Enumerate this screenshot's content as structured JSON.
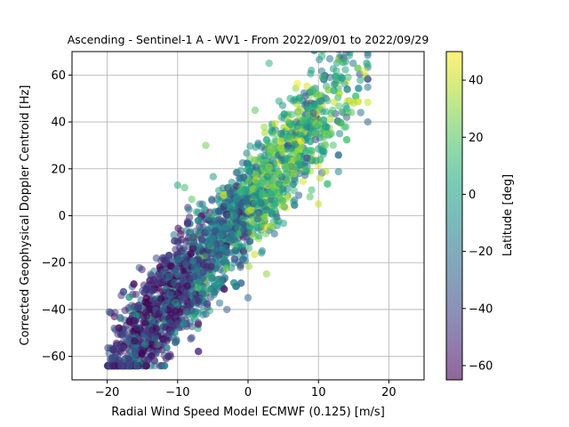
{
  "chart_data": {
    "type": "scatter",
    "title": "Ascending - Sentinel-1 A - WV1 - From 2022/09/01 to 2022/09/29",
    "xlabel": "Radial Wind Speed Model ECMWF (0.125) [m/s]",
    "ylabel": "Corrected Geophysical Doppler Centroid [Hz]",
    "xlim": [
      -25,
      25
    ],
    "ylim": [
      -70,
      70
    ],
    "xticks": [
      -20,
      -10,
      0,
      10,
      20
    ],
    "yticks": [
      -60,
      -40,
      -20,
      0,
      20,
      40,
      60
    ],
    "grid": true,
    "point_alpha": 0.55,
    "colorbar": {
      "label": "Latitude [deg]",
      "range": [
        -65,
        50
      ],
      "ticks": [
        -60,
        -40,
        -20,
        0,
        20,
        40
      ],
      "colormap": "viridis"
    },
    "approximate_relation": {
      "description": "dense cloud of points following a roughly linear trend",
      "slope_hz_per_ms": 3.6,
      "x_range": [
        -20,
        17
      ],
      "y_range": [
        -64,
        70
      ],
      "spread_hz": 11
    },
    "series": [
      {
        "points": [
          {
            "x": -19,
            "y": -48,
            "lat": -45
          },
          {
            "x": -18,
            "y": -64,
            "lat": -40
          },
          {
            "x": -17,
            "y": -61,
            "lat": -50
          },
          {
            "x": -18,
            "y": -34,
            "lat": -45
          },
          {
            "x": -16,
            "y": -45,
            "lat": -55
          },
          {
            "x": -15,
            "y": -32,
            "lat": -40
          },
          {
            "x": -14,
            "y": -50,
            "lat": -50
          },
          {
            "x": -13,
            "y": -55,
            "lat": -45
          },
          {
            "x": -12,
            "y": -40,
            "lat": -35
          },
          {
            "x": -11,
            "y": -60,
            "lat": -50
          },
          {
            "x": -12,
            "y": -24,
            "lat": -30
          },
          {
            "x": -10,
            "y": -20,
            "lat": -25
          },
          {
            "x": -9,
            "y": -36,
            "lat": -40
          },
          {
            "x": -8,
            "y": -52,
            "lat": -35
          },
          {
            "x": -10,
            "y": 13,
            "lat": 5
          },
          {
            "x": -9,
            "y": 12,
            "lat": 15
          },
          {
            "x": -8,
            "y": 7,
            "lat": 20
          },
          {
            "x": -7,
            "y": -2,
            "lat": -10
          },
          {
            "x": -6,
            "y": 30,
            "lat": 25
          },
          {
            "x": -5,
            "y": -10,
            "lat": -15
          },
          {
            "x": -4,
            "y": -20,
            "lat": -20
          },
          {
            "x": -3,
            "y": -40,
            "lat": -30
          },
          {
            "x": -2,
            "y": 0,
            "lat": 0
          },
          {
            "x": -1,
            "y": 10,
            "lat": 10
          },
          {
            "x": 0,
            "y": -35,
            "lat": -25
          },
          {
            "x": 1,
            "y": 5,
            "lat": 5
          },
          {
            "x": 1,
            "y": 45,
            "lat": 20
          },
          {
            "x": 2,
            "y": -15,
            "lat": -10
          },
          {
            "x": 3,
            "y": 20,
            "lat": 15
          },
          {
            "x": 3,
            "y": 65,
            "lat": 10
          },
          {
            "x": 4,
            "y": 35,
            "lat": 25
          },
          {
            "x": 5,
            "y": 10,
            "lat": 0
          },
          {
            "x": 6,
            "y": 50,
            "lat": 5
          },
          {
            "x": 7,
            "y": 25,
            "lat": 30
          },
          {
            "x": 8,
            "y": 40,
            "lat": 10
          },
          {
            "x": 9,
            "y": 62,
            "lat": 0
          },
          {
            "x": 10,
            "y": 5,
            "lat": 40
          },
          {
            "x": 11,
            "y": 30,
            "lat": 20
          },
          {
            "x": 12,
            "y": 45,
            "lat": 15
          },
          {
            "x": 13,
            "y": 35,
            "lat": -10
          },
          {
            "x": 14,
            "y": 42,
            "lat": -30
          },
          {
            "x": 15,
            "y": 48,
            "lat": 35
          },
          {
            "x": 16,
            "y": 44,
            "lat": -20
          },
          {
            "x": 17,
            "y": 40,
            "lat": -25
          }
        ]
      }
    ]
  }
}
